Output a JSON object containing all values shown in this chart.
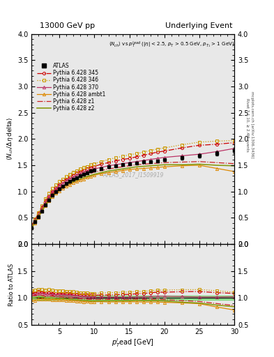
{
  "title_left": "13000 GeV pp",
  "title_right": "Underlying Event",
  "right_label_top": "Rivet 3.1.10, ≥ 2.4M events",
  "right_label_bot": "mcplots.cern.ch [arXiv:1306.3436]",
  "watermark": "ATLAS_2017_I1509919",
  "xlabel": "$p_T^{l}$ead [GeV]",
  "ylabel": "$\\langle N_{ch}/ \\Delta\\eta$ delta$\\rangle$",
  "ylabel_ratio": "Ratio to ATLAS",
  "xmin": 1,
  "xmax": 30,
  "ymin": 0,
  "ymax": 4,
  "ymin_ratio": 0.5,
  "ymax_ratio": 2.0,
  "atlas_x": [
    1.0,
    1.5,
    2.0,
    2.5,
    3.0,
    3.5,
    4.0,
    4.5,
    5.0,
    5.5,
    6.0,
    6.5,
    7.0,
    7.5,
    8.0,
    8.5,
    9.0,
    9.5,
    10.0,
    11.0,
    12.0,
    13.0,
    14.0,
    15.0,
    16.0,
    17.0,
    18.0,
    19.0,
    20.0,
    22.5,
    25.0,
    27.5,
    30.0
  ],
  "atlas_y": [
    0.31,
    0.42,
    0.52,
    0.63,
    0.75,
    0.84,
    0.93,
    1.0,
    1.05,
    1.1,
    1.15,
    1.19,
    1.23,
    1.26,
    1.3,
    1.33,
    1.36,
    1.39,
    1.41,
    1.44,
    1.47,
    1.49,
    1.51,
    1.53,
    1.54,
    1.56,
    1.57,
    1.58,
    1.6,
    1.64,
    1.68,
    1.73,
    1.78
  ],
  "atlas_yerr": [
    0.02,
    0.02,
    0.02,
    0.02,
    0.02,
    0.02,
    0.02,
    0.02,
    0.02,
    0.02,
    0.02,
    0.02,
    0.02,
    0.02,
    0.02,
    0.02,
    0.02,
    0.02,
    0.02,
    0.02,
    0.02,
    0.02,
    0.02,
    0.02,
    0.02,
    0.02,
    0.02,
    0.02,
    0.02,
    0.03,
    0.03,
    0.04,
    0.05
  ],
  "p345_x": [
    1.0,
    1.5,
    2.0,
    2.5,
    3.0,
    3.5,
    4.0,
    4.5,
    5.0,
    5.5,
    6.0,
    6.5,
    7.0,
    7.5,
    8.0,
    8.5,
    9.0,
    9.5,
    10.0,
    11.0,
    12.0,
    13.0,
    14.0,
    15.0,
    16.0,
    17.0,
    18.0,
    19.0,
    20.0,
    22.5,
    25.0,
    27.5,
    30.0
  ],
  "p345_y": [
    0.34,
    0.46,
    0.58,
    0.7,
    0.82,
    0.92,
    1.01,
    1.08,
    1.14,
    1.19,
    1.24,
    1.28,
    1.32,
    1.35,
    1.38,
    1.41,
    1.44,
    1.46,
    1.48,
    1.52,
    1.55,
    1.58,
    1.61,
    1.63,
    1.66,
    1.69,
    1.72,
    1.75,
    1.77,
    1.83,
    1.88,
    1.9,
    1.93
  ],
  "p346_x": [
    1.0,
    1.5,
    2.0,
    2.5,
    3.0,
    3.5,
    4.0,
    4.5,
    5.0,
    5.5,
    6.0,
    6.5,
    7.0,
    7.5,
    8.0,
    8.5,
    9.0,
    9.5,
    10.0,
    11.0,
    12.0,
    13.0,
    14.0,
    15.0,
    16.0,
    17.0,
    18.0,
    19.0,
    20.0,
    22.5,
    25.0,
    27.5,
    30.0
  ],
  "p346_y": [
    0.35,
    0.48,
    0.6,
    0.73,
    0.86,
    0.97,
    1.06,
    1.13,
    1.19,
    1.24,
    1.29,
    1.33,
    1.37,
    1.4,
    1.43,
    1.46,
    1.48,
    1.51,
    1.53,
    1.57,
    1.61,
    1.64,
    1.67,
    1.7,
    1.72,
    1.75,
    1.78,
    1.81,
    1.83,
    1.89,
    1.94,
    1.96,
    1.97
  ],
  "p370_x": [
    1.0,
    1.5,
    2.0,
    2.5,
    3.0,
    3.5,
    4.0,
    4.5,
    5.0,
    5.5,
    6.0,
    6.5,
    7.0,
    7.5,
    8.0,
    8.5,
    9.0,
    9.5,
    10.0,
    11.0,
    12.0,
    13.0,
    14.0,
    15.0,
    16.0,
    17.0,
    18.0,
    19.0,
    20.0,
    22.5,
    25.0,
    27.5,
    30.0
  ],
  "p370_y": [
    0.33,
    0.45,
    0.56,
    0.68,
    0.8,
    0.9,
    0.99,
    1.06,
    1.11,
    1.16,
    1.21,
    1.25,
    1.28,
    1.31,
    1.34,
    1.37,
    1.39,
    1.41,
    1.43,
    1.46,
    1.49,
    1.51,
    1.53,
    1.55,
    1.57,
    1.59,
    1.61,
    1.63,
    1.65,
    1.68,
    1.71,
    1.76,
    1.82
  ],
  "pambt1_x": [
    1.0,
    1.5,
    2.0,
    2.5,
    3.0,
    3.5,
    4.0,
    4.5,
    5.0,
    5.5,
    6.0,
    6.5,
    7.0,
    7.5,
    8.0,
    8.5,
    9.0,
    9.5,
    10.0,
    11.0,
    12.0,
    13.0,
    14.0,
    15.0,
    16.0,
    17.0,
    18.0,
    19.0,
    20.0,
    22.5,
    25.0,
    27.5,
    30.0
  ],
  "pambt1_y": [
    0.3,
    0.4,
    0.51,
    0.62,
    0.73,
    0.82,
    0.9,
    0.97,
    1.01,
    1.06,
    1.1,
    1.13,
    1.17,
    1.19,
    1.22,
    1.24,
    1.27,
    1.29,
    1.31,
    1.34,
    1.36,
    1.38,
    1.4,
    1.42,
    1.43,
    1.44,
    1.45,
    1.46,
    1.47,
    1.49,
    1.5,
    1.44,
    1.38
  ],
  "pz1_x": [
    1.0,
    1.5,
    2.0,
    2.5,
    3.0,
    3.5,
    4.0,
    4.5,
    5.0,
    5.5,
    6.0,
    6.5,
    7.0,
    7.5,
    8.0,
    8.5,
    9.0,
    9.5,
    10.0,
    11.0,
    12.0,
    13.0,
    14.0,
    15.0,
    16.0,
    17.0,
    18.0,
    19.0,
    20.0,
    22.5,
    25.0,
    27.5,
    30.0
  ],
  "pz1_y": [
    0.32,
    0.44,
    0.55,
    0.66,
    0.77,
    0.87,
    0.96,
    1.02,
    1.07,
    1.12,
    1.16,
    1.19,
    1.22,
    1.25,
    1.28,
    1.3,
    1.33,
    1.35,
    1.37,
    1.4,
    1.43,
    1.45,
    1.47,
    1.49,
    1.51,
    1.52,
    1.53,
    1.54,
    1.55,
    1.56,
    1.57,
    1.55,
    1.53
  ],
  "pz2_x": [
    1.0,
    1.5,
    2.0,
    2.5,
    3.0,
    3.5,
    4.0,
    4.5,
    5.0,
    5.5,
    6.0,
    6.5,
    7.0,
    7.5,
    8.0,
    8.5,
    9.0,
    9.5,
    10.0,
    11.0,
    12.0,
    13.0,
    14.0,
    15.0,
    16.0,
    17.0,
    18.0,
    19.0,
    20.0,
    22.5,
    25.0,
    27.5,
    30.0
  ],
  "pz2_y": [
    0.31,
    0.42,
    0.53,
    0.64,
    0.75,
    0.84,
    0.93,
    0.99,
    1.04,
    1.09,
    1.13,
    1.16,
    1.19,
    1.22,
    1.24,
    1.27,
    1.29,
    1.31,
    1.33,
    1.36,
    1.39,
    1.41,
    1.43,
    1.45,
    1.47,
    1.48,
    1.49,
    1.5,
    1.51,
    1.51,
    1.52,
    1.5,
    1.49
  ],
  "color_345": "#cc0000",
  "color_346": "#cc9900",
  "color_370": "#bb3366",
  "color_ambt1": "#dd8800",
  "color_z1": "#cc2222",
  "color_z2": "#889911",
  "atlas_color": "#000000",
  "bg_color": "#e8e8e8",
  "green_band_color": "#00cc00"
}
